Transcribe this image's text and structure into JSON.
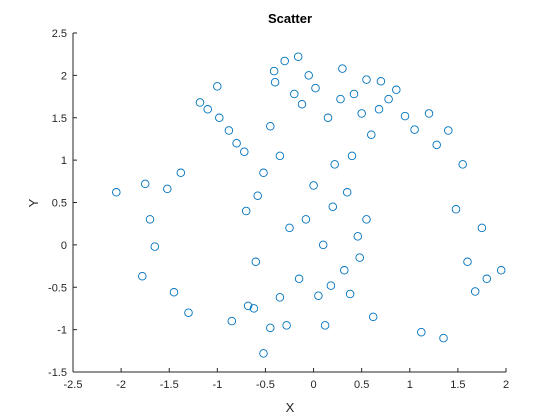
{
  "chart_data": {
    "type": "scatter",
    "title": "Scatter",
    "xlabel": "X",
    "ylabel": "Y",
    "xlim": [
      -2.5,
      2
    ],
    "ylim": [
      -1.5,
      2.5
    ],
    "xticks": [
      "-2.5",
      "-2",
      "-1.5",
      "-1",
      "-0.5",
      "0",
      "0.5",
      "1",
      "1.5",
      "2"
    ],
    "yticks": [
      "-1.5",
      "-1",
      "-0.5",
      "0",
      "0.5",
      "1",
      "1.5",
      "2",
      "2.5"
    ],
    "grid": false,
    "marker": "open-circle",
    "color": "#0072BD",
    "points": [
      [
        -2.05,
        0.62
      ],
      [
        -1.75,
        0.72
      ],
      [
        -1.78,
        -0.37
      ],
      [
        -1.7,
        0.3
      ],
      [
        -1.65,
        -0.02
      ],
      [
        -1.52,
        0.66
      ],
      [
        -1.45,
        -0.56
      ],
      [
        -1.38,
        0.85
      ],
      [
        -1.3,
        -0.8
      ],
      [
        -1.18,
        1.68
      ],
      [
        -1.1,
        1.6
      ],
      [
        -1.0,
        1.87
      ],
      [
        -0.98,
        1.5
      ],
      [
        -0.88,
        1.35
      ],
      [
        -0.85,
        -0.9
      ],
      [
        -0.8,
        1.2
      ],
      [
        -0.72,
        1.1
      ],
      [
        -0.68,
        -0.72
      ],
      [
        -0.62,
        -0.75
      ],
      [
        -0.58,
        0.58
      ],
      [
        -0.52,
        0.85
      ],
      [
        -0.52,
        -1.28
      ],
      [
        -0.45,
        -0.98
      ],
      [
        -0.41,
        2.05
      ],
      [
        -0.4,
        1.92
      ],
      [
        -0.35,
        -0.62
      ],
      [
        -0.3,
        2.17
      ],
      [
        -0.28,
        -0.95
      ],
      [
        -0.2,
        1.78
      ],
      [
        -0.16,
        2.22
      ],
      [
        -0.12,
        1.66
      ],
      [
        -0.08,
        0.3
      ],
      [
        -0.05,
        2.0
      ],
      [
        0.0,
        0.7
      ],
      [
        0.02,
        1.85
      ],
      [
        0.05,
        -0.6
      ],
      [
        0.1,
        0.0
      ],
      [
        0.15,
        1.5
      ],
      [
        0.18,
        -0.48
      ],
      [
        0.22,
        0.95
      ],
      [
        0.28,
        1.72
      ],
      [
        0.32,
        -0.3
      ],
      [
        0.35,
        0.62
      ],
      [
        0.38,
        -0.58
      ],
      [
        0.42,
        1.78
      ],
      [
        0.46,
        0.1
      ],
      [
        0.5,
        1.55
      ],
      [
        0.55,
        1.95
      ],
      [
        0.6,
        1.3
      ],
      [
        0.62,
        -0.85
      ],
      [
        0.68,
        1.6
      ],
      [
        0.7,
        1.93
      ],
      [
        0.78,
        1.72
      ],
      [
        0.86,
        1.83
      ],
      [
        0.95,
        1.52
      ],
      [
        1.05,
        1.36
      ],
      [
        1.12,
        -1.03
      ],
      [
        1.2,
        1.55
      ],
      [
        1.28,
        1.18
      ],
      [
        1.35,
        -1.1
      ],
      [
        1.4,
        1.35
      ],
      [
        1.48,
        0.42
      ],
      [
        1.55,
        0.95
      ],
      [
        1.6,
        -0.2
      ],
      [
        1.68,
        -0.55
      ],
      [
        1.75,
        0.2
      ],
      [
        1.8,
        -0.4
      ],
      [
        1.95,
        -0.3
      ],
      [
        -0.7,
        0.4
      ],
      [
        -0.6,
        -0.2
      ],
      [
        0.55,
        0.3
      ],
      [
        0.48,
        -0.15
      ],
      [
        -0.45,
        1.4
      ],
      [
        0.4,
        1.05
      ],
      [
        -0.25,
        0.2
      ],
      [
        0.2,
        0.45
      ],
      [
        -0.15,
        -0.4
      ],
      [
        0.12,
        -0.95
      ],
      [
        -0.35,
        1.05
      ],
      [
        0.3,
        2.08
      ]
    ]
  }
}
